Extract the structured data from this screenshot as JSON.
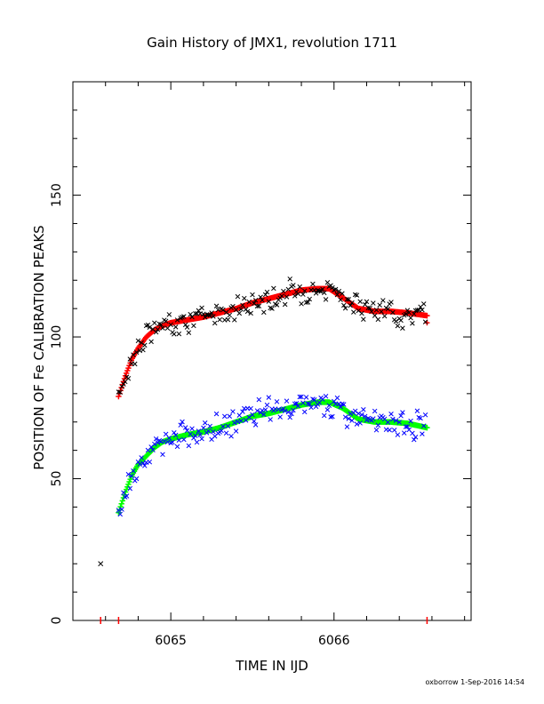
{
  "chart_data": {
    "type": "scatter",
    "title": "Gain History of JMX1, revolution 1711",
    "xlabel": "TIME IN IJD",
    "ylabel": "POSITION OF Fe CALIBRATION PEAKS",
    "xlim": [
      6064.4,
      6066.84
    ],
    "ylim": [
      0,
      190
    ],
    "x_ticks": [
      6065,
      6066
    ],
    "y_ticks": [
      0,
      50,
      100,
      150
    ],
    "x_tick_labels": [
      "6065",
      "6066"
    ],
    "y_tick_labels": [
      "0",
      "50",
      "100",
      "150"
    ],
    "grid": false,
    "footer": "oxborrow  1-Sep-2016 14:54",
    "colors": {
      "upper_points": "#000000",
      "upper_fit": "#ff0000",
      "lower_points": "#0000ff",
      "lower_fit": "#00ff00",
      "markers": "#ff0000"
    },
    "series": [
      {
        "role": "upper-fit",
        "x": [
          6064.68,
          6064.72,
          6064.76,
          6064.8,
          6064.85,
          6064.9,
          6064.95,
          6065.0,
          6065.1,
          6065.2,
          6065.3,
          6065.4,
          6065.5,
          6065.6,
          6065.7,
          6065.8,
          6065.9,
          6065.97,
          6066.05,
          6066.15,
          6066.25,
          6066.35,
          6066.45,
          6066.57
        ],
        "values": [
          79,
          86,
          92,
          96,
          100,
          102.5,
          104,
          105,
          106,
          107,
          108.5,
          110,
          112,
          113.5,
          115,
          116.5,
          117,
          117,
          114,
          110,
          109,
          109,
          108.5,
          107.5
        ]
      },
      {
        "role": "lower-fit",
        "x": [
          6064.68,
          6064.72,
          6064.76,
          6064.8,
          6064.85,
          6064.9,
          6064.95,
          6065.0,
          6065.1,
          6065.2,
          6065.3,
          6065.4,
          6065.5,
          6065.6,
          6065.7,
          6065.8,
          6065.9,
          6065.97,
          6066.05,
          6066.15,
          6066.25,
          6066.35,
          6066.45,
          6066.57
        ],
        "values": [
          38,
          45,
          51,
          55,
          58,
          61,
          63,
          64,
          65.5,
          66.5,
          68,
          70,
          72,
          73,
          74.5,
          76,
          77,
          77,
          75,
          71,
          70,
          70,
          69.5,
          68
        ]
      },
      {
        "role": "upper-points",
        "x": [
          6064.57
        ],
        "values": [
          20
        ]
      },
      {
        "role": "markers",
        "x": [
          6064.57,
          6064.68,
          6066.57
        ],
        "values": [
          0,
          0,
          0
        ]
      }
    ]
  }
}
